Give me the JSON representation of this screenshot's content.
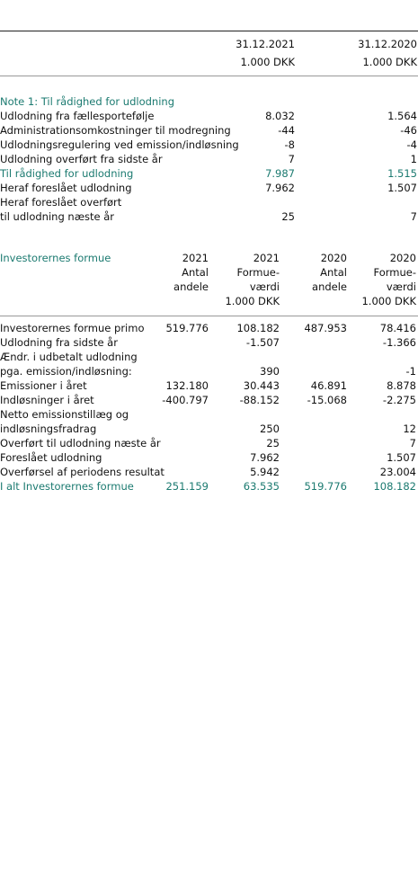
{
  "accent_color": "#1b7a70",
  "table1": {
    "columns": [
      [
        "31.12.2021",
        "1.000 DKK"
      ],
      [
        "31.12.2020",
        "1.000 DKK"
      ]
    ],
    "rows": [
      {
        "cells": [
          "Note 1: Til rådighed for udlodning",
          null,
          null
        ],
        "accent": true
      },
      {
        "cells": [
          "Udlodning fra fællesportefølje",
          "8.032",
          "1.564"
        ]
      },
      {
        "cells": [
          "Administrationsomkostninger til modregning",
          "-44",
          "-46"
        ]
      },
      {
        "cells": [
          "Udlodningsregulering ved emission/indløsning",
          "-8",
          "-4"
        ]
      },
      {
        "cells": [
          "Udlodning overført fra sidste år",
          "7",
          "1"
        ]
      },
      {
        "cells": [
          "Til rådighed for udlodning",
          "7.987",
          "1.515"
        ],
        "accent": true
      },
      {
        "cells": [
          "Heraf foreslået udlodning",
          "7.962",
          "1.507"
        ]
      },
      {
        "cells": [
          "Heraf foreslået overført",
          null,
          null
        ]
      },
      {
        "cells": [
          "til udlodning næste år",
          "25",
          "7"
        ]
      }
    ]
  },
  "table2": {
    "title": "Investorernes formue",
    "columns": [
      [
        "2021",
        "Antal",
        "andele"
      ],
      [
        "2021",
        "Formue-",
        "værdi",
        "1.000 DKK"
      ],
      [
        "2020",
        "Antal",
        "andele"
      ],
      [
        "2020",
        "Formue-",
        "værdi",
        "1.000 DKK"
      ]
    ],
    "rows": [
      {
        "cells": [
          "Investorernes formue primo",
          "519.776",
          "108.182",
          "487.953",
          "78.416"
        ]
      },
      {
        "cells": [
          "Udlodning fra sidste år",
          null,
          "-1.507",
          null,
          "-1.366"
        ]
      },
      {
        "cells": [
          "Ændr. i udbetalt udlodning",
          null,
          null,
          null,
          null
        ]
      },
      {
        "cells": [
          "pga. emission/indløsning:",
          null,
          "390",
          null,
          "-1"
        ]
      },
      {
        "cells": [
          "Emissioner i året",
          "132.180",
          "30.443",
          "46.891",
          "8.878"
        ]
      },
      {
        "cells": [
          "Indløsninger i året",
          "-400.797",
          "-88.152",
          "-15.068",
          "-2.275"
        ]
      },
      {
        "cells": [
          "Netto emissionstillæg og",
          null,
          null,
          null,
          null
        ]
      },
      {
        "cells": [
          "indløsningsfradrag",
          null,
          "250",
          null,
          "12"
        ]
      },
      {
        "cells": [
          "Overført til udlodning næste år",
          null,
          "25",
          null,
          "7"
        ]
      },
      {
        "cells": [
          "Foreslået udlodning",
          null,
          "7.962",
          null,
          "1.507"
        ]
      },
      {
        "cells": [
          "Overførsel af periodens resultat",
          null,
          "5.942",
          null,
          "23.004"
        ]
      },
      {
        "cells": [
          "I alt Investorernes formue",
          "251.159",
          "63.535",
          "519.776",
          "108.182"
        ],
        "accent": true
      }
    ]
  }
}
